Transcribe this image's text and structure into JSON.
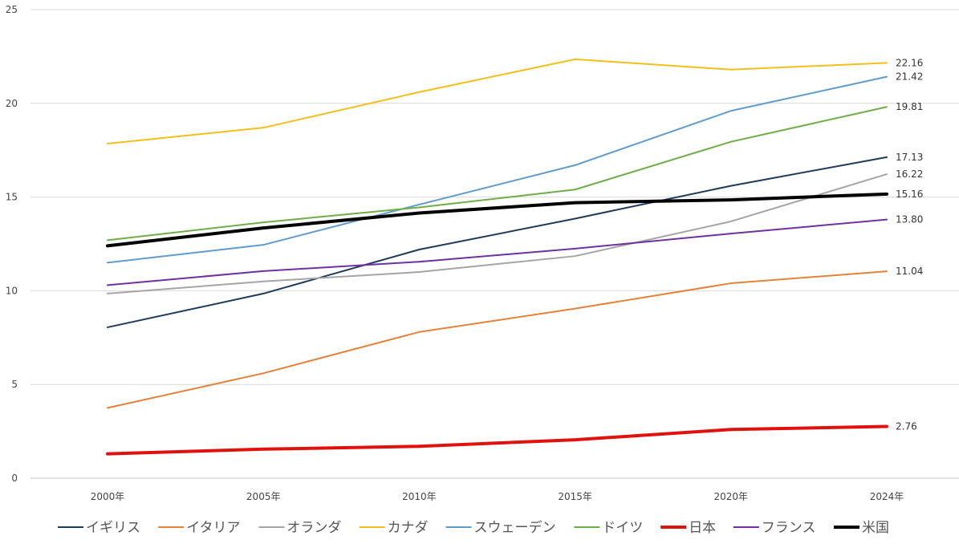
{
  "chart_data": {
    "type": "line",
    "title": "",
    "xlabel": "",
    "ylabel": "",
    "categories": [
      "2000年",
      "2005年",
      "2010年",
      "2015年",
      "2020年",
      "2024年"
    ],
    "ylim": [
      0,
      25
    ],
    "yticks": [
      "0",
      "5",
      "10",
      "15",
      "20",
      "25"
    ],
    "grid": true,
    "legend_position": "bottom",
    "series": [
      {
        "name": "イギリス",
        "color": "#1f3a5a",
        "bold": false,
        "values": [
          8.05,
          9.85,
          12.2,
          13.85,
          15.6,
          17.13
        ],
        "end_label": "17.13"
      },
      {
        "name": "イタリア",
        "color": "#e5823a",
        "bold": false,
        "values": [
          3.75,
          5.6,
          7.8,
          9.05,
          10.4,
          11.04
        ],
        "end_label": "11.04"
      },
      {
        "name": "オランダ",
        "color": "#a5a5a5",
        "bold": false,
        "values": [
          9.85,
          10.5,
          11.0,
          11.85,
          13.7,
          16.22
        ],
        "end_label": "16.22"
      },
      {
        "name": "カナダ",
        "color": "#f2bf1b",
        "bold": false,
        "values": [
          17.85,
          18.7,
          20.6,
          22.35,
          21.8,
          22.16
        ],
        "end_label": "22.16"
      },
      {
        "name": "スウェーデン",
        "color": "#5f9bcd",
        "bold": false,
        "values": [
          11.5,
          12.45,
          14.6,
          16.7,
          19.6,
          21.42
        ],
        "end_label": "21.42"
      },
      {
        "name": "ドイツ",
        "color": "#6ead48",
        "bold": false,
        "values": [
          12.7,
          13.65,
          14.45,
          15.4,
          17.95,
          19.81
        ],
        "end_label": "19.81"
      },
      {
        "name": "日本",
        "color": "#e0120e",
        "bold": true,
        "values": [
          1.3,
          1.55,
          1.7,
          2.05,
          2.6,
          2.76
        ],
        "end_label": "2.76"
      },
      {
        "name": "フランス",
        "color": "#7030a0",
        "bold": false,
        "values": [
          10.3,
          11.05,
          11.55,
          12.25,
          13.05,
          13.8
        ],
        "end_label": "13.80"
      },
      {
        "name": "米国",
        "color": "#000000",
        "bold": true,
        "values": [
          12.4,
          13.35,
          14.15,
          14.7,
          14.85,
          15.16
        ],
        "end_label": "15.16"
      }
    ]
  }
}
